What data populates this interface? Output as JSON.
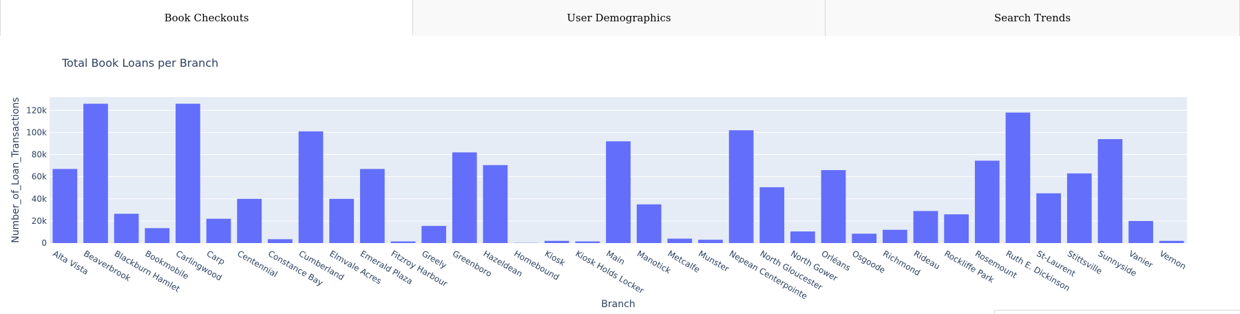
{
  "tabs": [
    {
      "label": "Book Checkouts",
      "active": true
    },
    {
      "label": "User Demographics",
      "active": false
    },
    {
      "label": "Search Trends",
      "active": false
    }
  ],
  "colors": {
    "bar": "#636efa",
    "plot_bg": "#e5ecf6",
    "grid": "#ffffff",
    "text": "#2a3f5f"
  },
  "chart_data": {
    "type": "bar",
    "title": "Total Book Loans per Branch",
    "xlabel": "Branch",
    "ylabel": "Number_of_Loan_Transactions",
    "ylim": [
      0,
      132000
    ],
    "yticks": [
      0,
      20000,
      40000,
      60000,
      80000,
      100000,
      120000
    ],
    "ytick_labels": [
      "0",
      "20k",
      "40k",
      "60k",
      "80k",
      "100k",
      "120k"
    ],
    "grid": true,
    "categories": [
      "Alta Vista",
      "Beaverbrook",
      "Blackburn Hamlet",
      "Bookmobile",
      "Carlingwood",
      "Carp",
      "Centennial",
      "Constance Bay",
      "Cumberland",
      "Elmvale Acres",
      "Emerald Plaza",
      "Fitzroy Harbour",
      "Greely",
      "Greenboro",
      "Hazeldean",
      "Homebound",
      "Kiosk",
      "Kiosk Holds Locker",
      "Main",
      "Manotick",
      "Metcalfe",
      "Munster",
      "Nepean Centerpointe",
      "North Gloucester",
      "North Gower",
      "Orléans",
      "Osgoode",
      "Richmond",
      "Rideau",
      "Rockliffe Park",
      "Rosemount",
      "Ruth E. Dickinson",
      "St-Laurent",
      "Stittsville",
      "Sunnyside",
      "Vanier",
      "Vernon"
    ],
    "values": [
      67000,
      126000,
      26500,
      13500,
      126000,
      22000,
      40000,
      3500,
      101000,
      40000,
      67000,
      1500,
      15500,
      82000,
      70500,
      200,
      2000,
      1500,
      92000,
      35000,
      4000,
      3000,
      102000,
      50500,
      10500,
      66000,
      8500,
      12000,
      29000,
      26000,
      74500,
      118000,
      45000,
      63000,
      94000,
      20000,
      2000
    ]
  }
}
